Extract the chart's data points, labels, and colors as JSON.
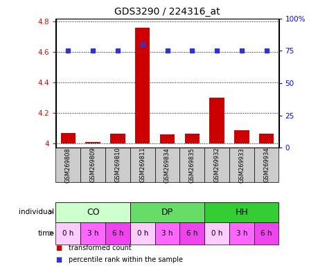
{
  "title": "GDS3290 / 224316_at",
  "samples": [
    "GSM269808",
    "GSM269809",
    "GSM269810",
    "GSM269811",
    "GSM269834",
    "GSM269835",
    "GSM269932",
    "GSM269933",
    "GSM269934"
  ],
  "transformed_count": [
    4.065,
    4.005,
    4.06,
    4.76,
    4.055,
    4.06,
    4.3,
    4.085,
    4.06
  ],
  "percentile_rank": [
    75,
    75,
    75,
    80,
    75,
    75,
    75,
    75,
    75
  ],
  "ylim_left": [
    3.97,
    4.82
  ],
  "ylim_right": [
    0,
    100
  ],
  "yticks_left": [
    4.0,
    4.2,
    4.4,
    4.6,
    4.8
  ],
  "ytick_labels_left": [
    "4",
    "4.2",
    "4.4",
    "4.6",
    "4.8"
  ],
  "yticks_right": [
    0,
    25,
    50,
    75,
    100
  ],
  "ytick_labels_right": [
    "0",
    "25",
    "50",
    "75",
    "100%"
  ],
  "bar_color": "#cc0000",
  "dot_color": "#3333cc",
  "individual_labels": [
    "CO",
    "DP",
    "HH"
  ],
  "individual_colors": [
    "#ccffcc",
    "#66dd66",
    "#33cc33"
  ],
  "time_labels": [
    "0 h",
    "3 h",
    "6 h",
    "0 h",
    "3 h",
    "6 h",
    "0 h",
    "3 h",
    "6 h"
  ],
  "time_colors": [
    "#ffccff",
    "#ff66ff",
    "#ee44ee",
    "#ffccff",
    "#ff66ff",
    "#ee44ee",
    "#ffccff",
    "#ff66ff",
    "#ee44ee"
  ],
  "legend_items": [
    "transformed count",
    "percentile rank within the sample"
  ],
  "legend_colors": [
    "#cc0000",
    "#3333cc"
  ],
  "sample_bg": "#cccccc"
}
